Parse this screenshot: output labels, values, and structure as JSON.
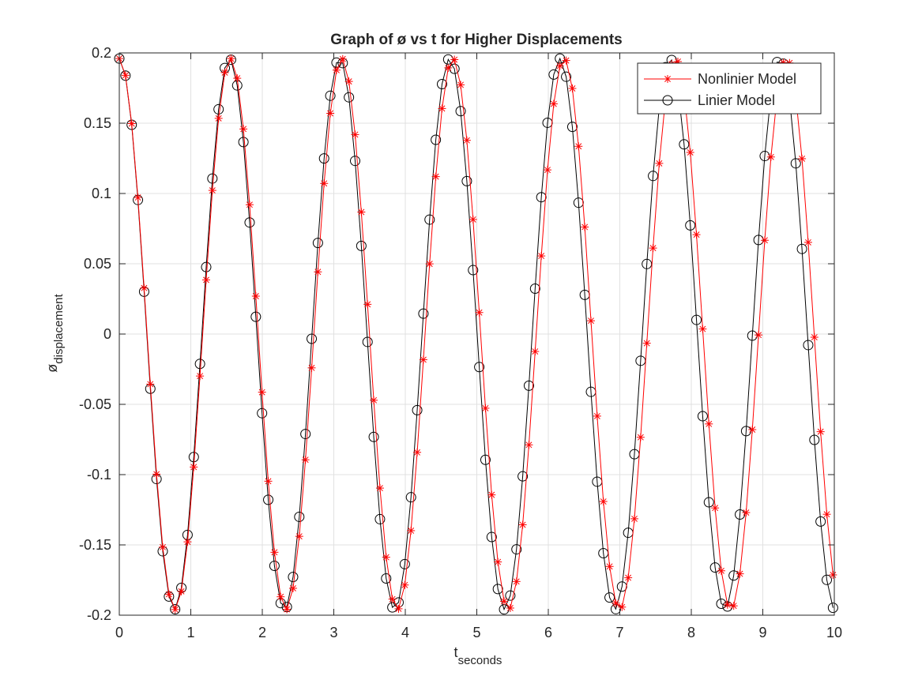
{
  "figure": {
    "title": "Graph of ø vs t for Higher Displacements",
    "xlabel_main": "t",
    "xlabel_sub": "seconds",
    "ylabel_main": "ø",
    "ylabel_sub": "displacement"
  },
  "legend": {
    "entries": [
      "Nonlinier Model",
      "Linier Model"
    ]
  },
  "colors": {
    "nonlinear": "#ff0000",
    "linear": "#000000",
    "grid": "#e1e1e1",
    "axes": "#262626"
  },
  "chart_data": {
    "type": "line",
    "title": "Graph of ø vs t for Higher Displacements",
    "xlabel": "t_seconds",
    "ylabel": "ø_displacement",
    "xlim": [
      0,
      10
    ],
    "ylim": [
      -0.2,
      0.2
    ],
    "xticks": [
      0,
      1,
      2,
      3,
      4,
      5,
      6,
      7,
      8,
      9,
      10
    ],
    "xtick_labels": [
      "0",
      "1",
      "2",
      "3",
      "4",
      "5",
      "6",
      "7",
      "8",
      "9",
      "10"
    ],
    "yticks": [
      -0.2,
      -0.15,
      -0.1,
      -0.05,
      0,
      0.05,
      0.1,
      0.15,
      0.2
    ],
    "ytick_labels": [
      "-0.2",
      "-0.15",
      "-0.1",
      "-0.05",
      "0",
      "0.05",
      "0.1",
      "0.15",
      "0.2"
    ],
    "grid": true,
    "legend_position": "top-right",
    "series": [
      {
        "name": "Nonlinier Model",
        "marker": "asterisk",
        "color": "#ff0000",
        "initial_amplitude": 0.196,
        "period": 1.555,
        "t_start": 0,
        "t_end": 10,
        "dt": 0.0868
      },
      {
        "name": "Linier Model",
        "marker": "circle",
        "color": "#000000",
        "initial_amplitude": 0.196,
        "period": 1.54,
        "t_start": 0,
        "t_end": 10,
        "dt": 0.0868
      }
    ]
  }
}
